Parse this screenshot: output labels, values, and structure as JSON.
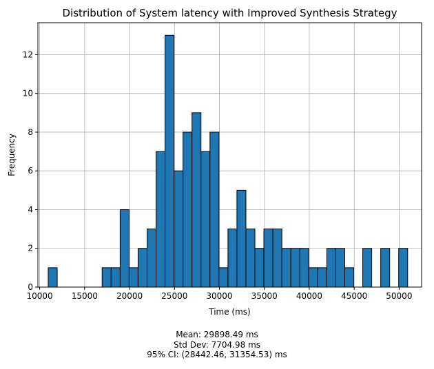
{
  "chart_data": {
    "type": "bar",
    "title": "Distribution of System latency with  Improved Synthesis Strategy",
    "xlabel": "Time (ms)",
    "ylabel": "Frequency",
    "xlim": [
      9800,
      52500
    ],
    "ylim": [
      0,
      13.65
    ],
    "xticks": [
      10000,
      15000,
      20000,
      25000,
      30000,
      35000,
      40000,
      45000,
      50000
    ],
    "yticks": [
      0,
      2,
      4,
      6,
      8,
      10,
      12
    ],
    "grid": true,
    "bar_color": "#1f77b4",
    "edge_color": "#000000",
    "bins": [
      {
        "x0": 10950,
        "x1": 11950,
        "count": 1
      },
      {
        "x0": 16950,
        "x1": 17950,
        "count": 1
      },
      {
        "x0": 17950,
        "x1": 18950,
        "count": 1
      },
      {
        "x0": 18950,
        "x1": 19950,
        "count": 4
      },
      {
        "x0": 19950,
        "x1": 20950,
        "count": 1
      },
      {
        "x0": 20950,
        "x1": 21950,
        "count": 2
      },
      {
        "x0": 21950,
        "x1": 22950,
        "count": 3
      },
      {
        "x0": 22950,
        "x1": 23950,
        "count": 7
      },
      {
        "x0": 23950,
        "x1": 24950,
        "count": 13
      },
      {
        "x0": 24950,
        "x1": 25950,
        "count": 6
      },
      {
        "x0": 25950,
        "x1": 26950,
        "count": 8
      },
      {
        "x0": 26950,
        "x1": 27950,
        "count": 9
      },
      {
        "x0": 27950,
        "x1": 28950,
        "count": 7
      },
      {
        "x0": 28950,
        "x1": 29950,
        "count": 8
      },
      {
        "x0": 29950,
        "x1": 30950,
        "count": 1
      },
      {
        "x0": 30950,
        "x1": 31950,
        "count": 3
      },
      {
        "x0": 31950,
        "x1": 32950,
        "count": 5
      },
      {
        "x0": 32950,
        "x1": 33950,
        "count": 3
      },
      {
        "x0": 33950,
        "x1": 34950,
        "count": 2
      },
      {
        "x0": 34950,
        "x1": 35950,
        "count": 3
      },
      {
        "x0": 35950,
        "x1": 36950,
        "count": 3
      },
      {
        "x0": 36950,
        "x1": 37950,
        "count": 2
      },
      {
        "x0": 37950,
        "x1": 38950,
        "count": 2
      },
      {
        "x0": 38950,
        "x1": 39950,
        "count": 2
      },
      {
        "x0": 39950,
        "x1": 40950,
        "count": 1
      },
      {
        "x0": 40950,
        "x1": 41950,
        "count": 1
      },
      {
        "x0": 41950,
        "x1": 42950,
        "count": 2
      },
      {
        "x0": 42950,
        "x1": 43950,
        "count": 2
      },
      {
        "x0": 43950,
        "x1": 44950,
        "count": 1
      },
      {
        "x0": 45950,
        "x1": 46950,
        "count": 2
      },
      {
        "x0": 47950,
        "x1": 48950,
        "count": 2
      },
      {
        "x0": 49950,
        "x1": 50950,
        "count": 2
      }
    ]
  },
  "stats": {
    "mean": "Mean: 29898.49 ms",
    "std": "Std Dev: 7704.98 ms",
    "ci": "95% CI: (28442.46, 31354.53) ms"
  }
}
